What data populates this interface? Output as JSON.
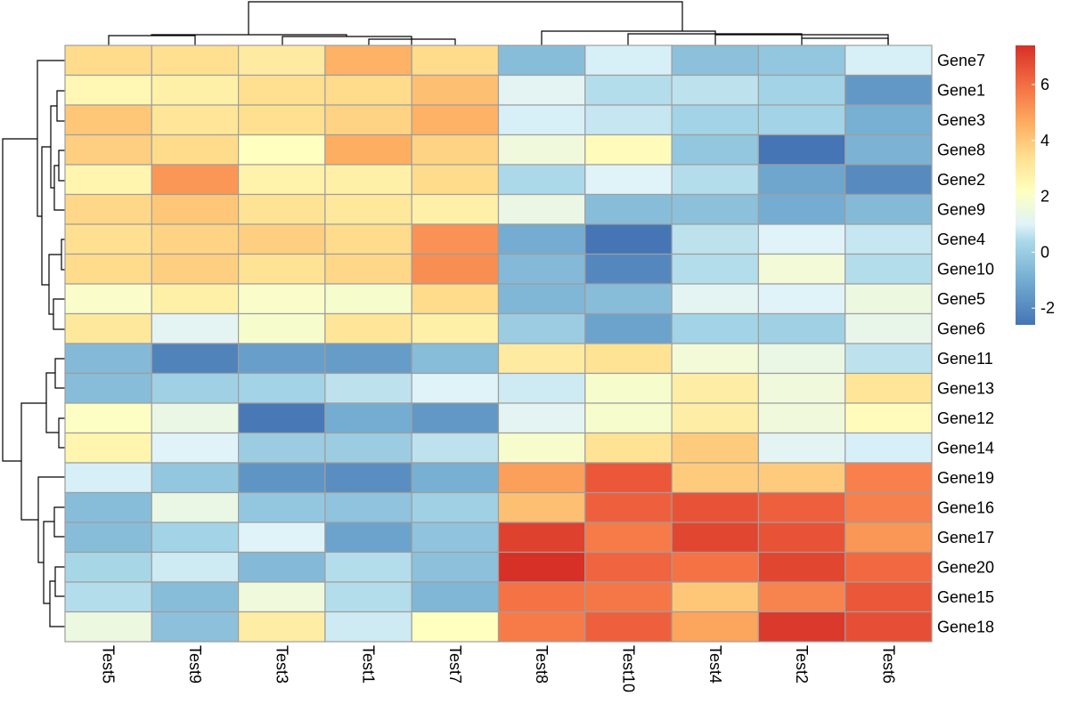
{
  "chart_data": {
    "type": "heatmap",
    "title": "",
    "columns": [
      "Test5",
      "Test9",
      "Test3",
      "Test1",
      "Test7",
      "Test8",
      "Test10",
      "Test4",
      "Test2",
      "Test6"
    ],
    "rows": [
      "Gene7",
      "Gene1",
      "Gene3",
      "Gene8",
      "Gene2",
      "Gene9",
      "Gene4",
      "Gene10",
      "Gene5",
      "Gene6",
      "Gene11",
      "Gene13",
      "Gene12",
      "Gene14",
      "Gene19",
      "Gene16",
      "Gene17",
      "Gene20",
      "Gene15",
      "Gene18"
    ],
    "values": [
      [
        3.5,
        3.4,
        3.0,
        4.5,
        3.5,
        -0.5,
        0.9,
        -0.4,
        -0.2,
        0.9
      ],
      [
        2.5,
        2.8,
        3.4,
        3.5,
        4.2,
        1.1,
        0.5,
        0.6,
        0.2,
        -1.6
      ],
      [
        4.0,
        3.2,
        3.4,
        3.7,
        4.5,
        0.9,
        0.7,
        0.2,
        0.2,
        -0.9
      ],
      [
        3.8,
        3.5,
        2.2,
        4.6,
        3.7,
        1.6,
        2.3,
        -0.2,
        -2.6,
        -0.8
      ],
      [
        2.6,
        5.1,
        2.7,
        2.8,
        3.5,
        0.4,
        1.0,
        0.5,
        -1.2,
        -2.0
      ],
      [
        3.6,
        4.0,
        3.3,
        3.1,
        2.8,
        1.4,
        -0.5,
        -0.4,
        -1.0,
        -0.6
      ],
      [
        3.4,
        3.7,
        3.8,
        3.5,
        5.2,
        -1.0,
        -2.6,
        0.6,
        1.0,
        0.7
      ],
      [
        3.5,
        3.8,
        3.3,
        3.6,
        5.3,
        -0.6,
        -2.1,
        0.5,
        1.7,
        0.5
      ],
      [
        2.0,
        2.8,
        2.0,
        1.9,
        3.5,
        -0.7,
        -0.5,
        1.1,
        1.0,
        1.5
      ],
      [
        3.1,
        1.1,
        1.9,
        3.2,
        2.8,
        0.0,
        -1.3,
        0.2,
        0.1,
        1.3
      ],
      [
        -0.6,
        -2.2,
        -1.4,
        -1.5,
        -0.5,
        3.0,
        3.3,
        1.7,
        1.4,
        0.6
      ],
      [
        -0.5,
        0.1,
        0.2,
        0.6,
        1.0,
        0.8,
        1.9,
        2.9,
        1.6,
        3.2
      ],
      [
        2.1,
        1.4,
        -2.5,
        -1.0,
        -1.6,
        1.1,
        1.9,
        2.9,
        1.6,
        2.3
      ],
      [
        2.6,
        1.0,
        0.0,
        0.0,
        0.6,
        1.9,
        3.3,
        3.9,
        1.1,
        0.9
      ],
      [
        0.9,
        -0.2,
        -1.7,
        -1.9,
        -0.9,
        4.9,
        6.5,
        3.9,
        3.9,
        5.6
      ],
      [
        -0.5,
        1.4,
        -0.2,
        -0.3,
        0.1,
        4.2,
        6.3,
        6.6,
        6.3,
        5.6
      ],
      [
        -0.5,
        0.2,
        1.0,
        -1.3,
        -0.3,
        7.0,
        5.7,
        6.9,
        6.6,
        5.1
      ],
      [
        0.3,
        0.8,
        -0.6,
        0.5,
        -0.4,
        7.4,
        6.2,
        5.9,
        6.9,
        6.1
      ],
      [
        0.5,
        -0.5,
        1.6,
        0.5,
        -0.7,
        5.9,
        5.8,
        4.0,
        5.5,
        6.5
      ],
      [
        1.5,
        -0.4,
        2.9,
        0.8,
        2.2,
        5.7,
        6.3,
        4.8,
        7.2,
        6.7
      ]
    ],
    "legend": {
      "position": "right",
      "ticks": [
        6,
        4,
        2,
        0,
        -2
      ],
      "range": [
        -2.6,
        7.4
      ]
    }
  }
}
